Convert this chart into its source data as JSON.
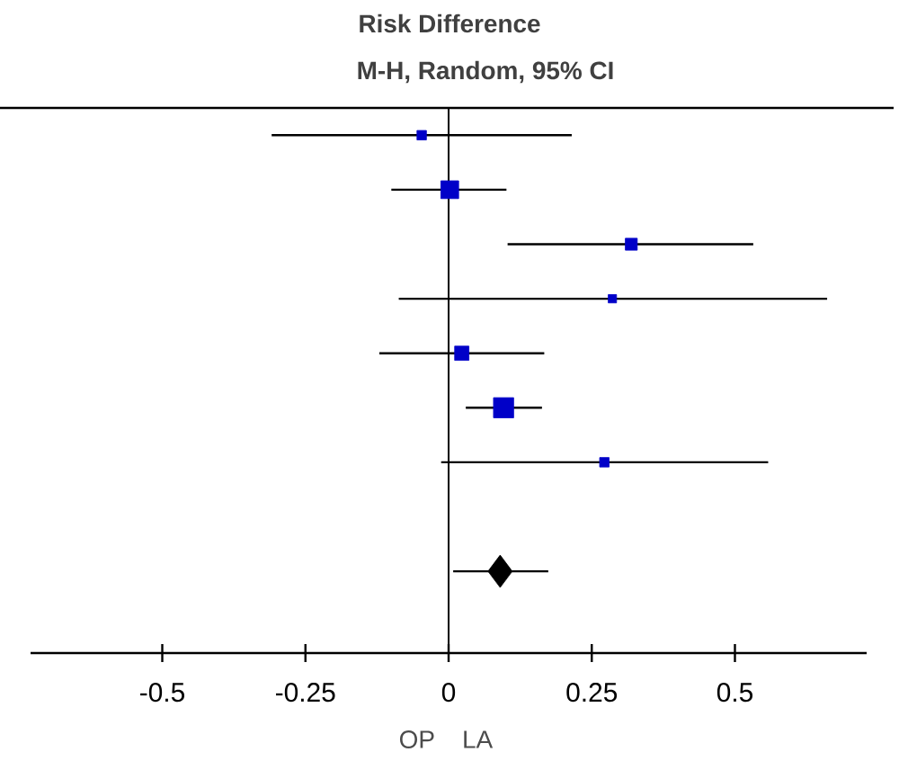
{
  "chart_data": {
    "type": "bubble",
    "title": "Risk Difference",
    "subtitle": "M-H, Random, 95% CI",
    "annotations": [
      "OP",
      "LA"
    ],
    "orientation": "horizontal",
    "categories": [
      null,
      null,
      null,
      null,
      null,
      null,
      null,
      null,
      null,
      null
    ],
    "xlim": [
      -0.73,
      0.73
    ],
    "xticks": [
      -0.5,
      -0.25,
      0,
      0.25,
      0.5
    ],
    "ref_lines": [
      {
        "axis": "x",
        "value": 0,
        "color": "#000000"
      }
    ],
    "series": [
      {
        "type": "bubble",
        "marker": "square",
        "color": "#0000c8",
        "values": [
          -0.047,
          0.002,
          0.319,
          0.286,
          0.023,
          0.096,
          0.272,
          null,
          null,
          null
        ],
        "sizes": [
          0.22,
          0.78,
          0.35,
          0.17,
          0.5,
          1,
          0.22,
          null,
          null,
          null
        ],
        "errors": [
          [
            -0.309,
            0.215
          ],
          [
            -0.1,
            0.101
          ],
          [
            0.103,
            0.532
          ],
          [
            -0.087,
            0.661
          ],
          [
            -0.121,
            0.167
          ],
          [
            0.03,
            0.163
          ],
          [
            -0.013,
            0.558
          ],
          null,
          null,
          null
        ]
      },
      {
        "type": "scatter",
        "marker": "diamond",
        "color": "#000000",
        "values": [
          null,
          null,
          null,
          null,
          null,
          null,
          null,
          null,
          0.09,
          null
        ],
        "errors": [
          null,
          null,
          null,
          null,
          null,
          null,
          null,
          null,
          [
            0.008,
            0.174
          ],
          null
        ]
      }
    ]
  }
}
